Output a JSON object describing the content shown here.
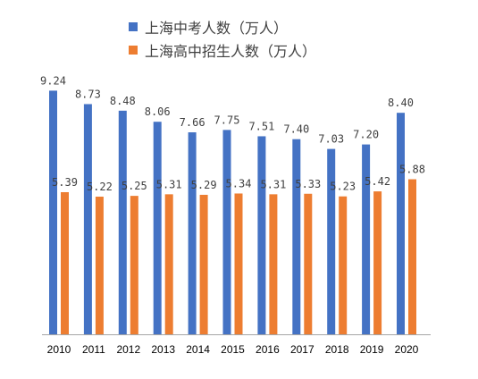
{
  "chart_data": {
    "type": "bar",
    "title": "",
    "xlabel": "",
    "ylabel": "",
    "categories": [
      "2010",
      "2011",
      "2012",
      "2013",
      "2014",
      "2015",
      "2016",
      "2017",
      "2018",
      "2019",
      "2020"
    ],
    "series": [
      {
        "name": "上海中考人数（万人）",
        "color": "#4472C4",
        "values": [
          9.24,
          8.73,
          8.48,
          8.06,
          7.66,
          7.75,
          7.51,
          7.4,
          7.03,
          7.2,
          8.4
        ],
        "labels": [
          "9.24",
          "8.73",
          "8.48",
          "8.06",
          "7.66",
          "7.75",
          "7.51",
          "7.40",
          "7.03",
          "7.20",
          "8.40"
        ]
      },
      {
        "name": "上海高中招生人数（万人）",
        "color": "#ED7D31",
        "values": [
          5.39,
          5.22,
          5.25,
          5.31,
          5.29,
          5.34,
          5.31,
          5.33,
          5.23,
          5.42,
          5.88
        ],
        "labels": [
          "5.39",
          "5.22",
          "5.25",
          "5.31",
          "5.29",
          "5.34",
          "5.31",
          "5.33",
          "5.23",
          "5.42",
          "5.88"
        ]
      }
    ],
    "ylim": [
      0,
      10
    ],
    "grid": false,
    "legend_position": "top-left",
    "axis_color": "#A6A6A6"
  }
}
